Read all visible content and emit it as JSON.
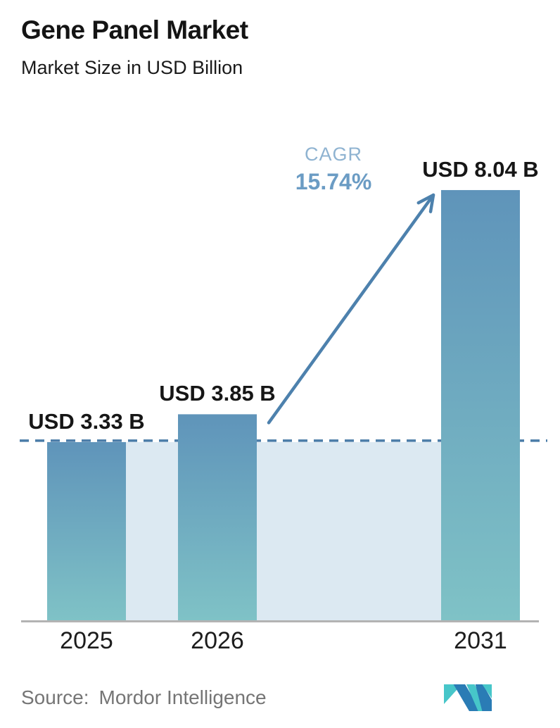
{
  "header": {
    "title": "Gene Panel Market",
    "subtitle": "Market Size in USD Billion"
  },
  "cagr": {
    "label": "CAGR",
    "value": "15.74%"
  },
  "source": {
    "label": "Source:",
    "name": "Mordor Intelligence"
  },
  "logo": {
    "name": "mordor-intelligence-logo",
    "blue": "#2a7cb5",
    "teal": "#47c6c9"
  },
  "chart_data": {
    "type": "bar",
    "title": "Gene Panel Market",
    "subtitle": "Market Size in USD Billion",
    "categories": [
      "2025",
      "2026",
      "2031"
    ],
    "values": [
      3.33,
      3.85,
      8.04
    ],
    "value_labels": [
      "USD 3.33 B",
      "USD 3.85 B",
      "USD 8.04 B"
    ],
    "unit": "USD Billion",
    "ylim": [
      0,
      9
    ],
    "grid": false,
    "legend": false,
    "annotations": {
      "cagr_label": "CAGR",
      "cagr_value": "15.74%",
      "dashed_baseline_at_value": 3.33,
      "arrow_from_category": "2026",
      "arrow_to_category": "2031"
    },
    "colors": {
      "bar_top": "#5f94ba",
      "bar_bottom": "#7fc2c6",
      "shade": "#dce9f2",
      "dash_line": "#4b7ca8",
      "arrow": "#4d81ad",
      "axis": "#b3b3b3"
    }
  }
}
